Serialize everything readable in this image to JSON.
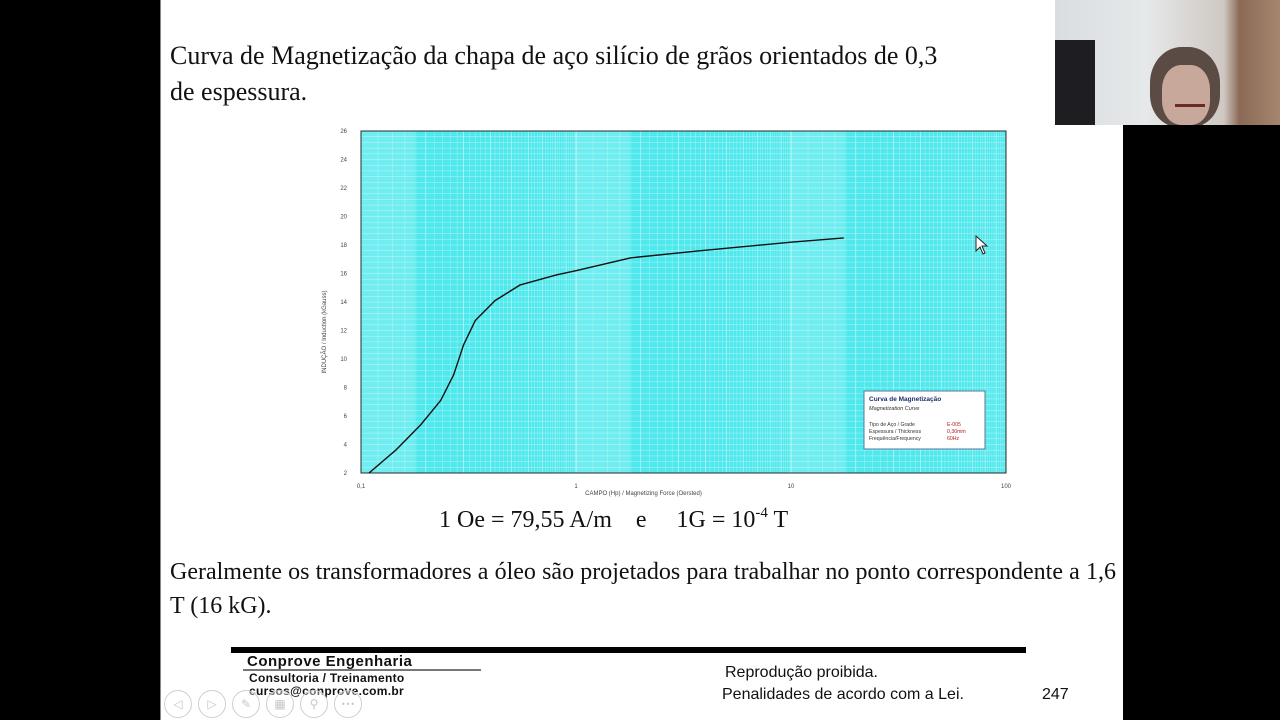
{
  "slide": {
    "title": "Curva de Magnetização da chapa de aço silício de grãos orientados de 0,3\nde espessura.",
    "formula": {
      "part1": "1 Oe = 79,55 A/m",
      "conj": "e",
      "part2_base": "1G = 10",
      "part2_exp": "-4",
      "part2_unit": " T"
    },
    "body": "Geralmente os transformadores a óleo são projetados para trabalhar no ponto correspondente a 1,6 T (16 kG).",
    "footer": {
      "company": "Conprove Engenharia",
      "subtitle": "Consultoria / Treinamento",
      "email": "cursos@conprove.com.br",
      "notice_line1": "Reprodução proibida.",
      "notice_line2": "Penalidades de acordo com a Lei.",
      "page_number": "247"
    },
    "nav_controls": [
      {
        "name": "previous-slide-button",
        "glyph": "◁"
      },
      {
        "name": "next-slide-button",
        "glyph": "▷"
      },
      {
        "name": "pen-tool-button",
        "glyph": "✎"
      },
      {
        "name": "slides-overview-button",
        "glyph": "▦"
      },
      {
        "name": "zoom-button",
        "glyph": "⚲"
      },
      {
        "name": "more-options-button",
        "glyph": "•••"
      }
    ]
  },
  "chart_data": {
    "type": "line",
    "title": "Curva de Magnetização",
    "subtitle": "Magnetization Curve",
    "xlabel": "CAMPO (Hp) / Magnetizing Force   (Oersted)",
    "ylabel": "INDUÇÃO / Induction   (kGauss)",
    "x_scale": "log",
    "xlim": [
      0.1,
      100
    ],
    "ylim": [
      2,
      26
    ],
    "x_ticks": [
      "0,1",
      "1",
      "10",
      "100"
    ],
    "y_ticks": [
      "2",
      "4",
      "6",
      "8",
      "10",
      "12",
      "14",
      "16",
      "18",
      "20",
      "22",
      "24",
      "26"
    ],
    "grid": true,
    "background_color": "#4fe8ec",
    "line_color": "#111111",
    "legend_box": {
      "position": "lower-right",
      "title": "Curva de Magnetização",
      "subtitle": "Magnetization Curve",
      "rows": [
        {
          "label": "Tipo de Aço / Grade",
          "value": "E-005"
        },
        {
          "label": "Espessura / Thickness",
          "value": "0,30mm"
        },
        {
          "label": "Frequência/Frequency",
          "value": "60Hz"
        }
      ]
    },
    "series": [
      {
        "name": "Magnetization Curve",
        "x": [
          0.109,
          0.145,
          0.19,
          0.235,
          0.27,
          0.3,
          0.34,
          0.42,
          0.55,
          0.81,
          1.0,
          1.8,
          3.8,
          10.0,
          17.6
        ],
        "y": [
          2.0,
          3.6,
          5.4,
          7.1,
          8.9,
          11.0,
          12.7,
          14.1,
          15.2,
          15.9,
          16.2,
          17.1,
          17.6,
          18.2,
          18.5
        ]
      }
    ]
  },
  "webcam": {
    "label": "presenter-video"
  }
}
